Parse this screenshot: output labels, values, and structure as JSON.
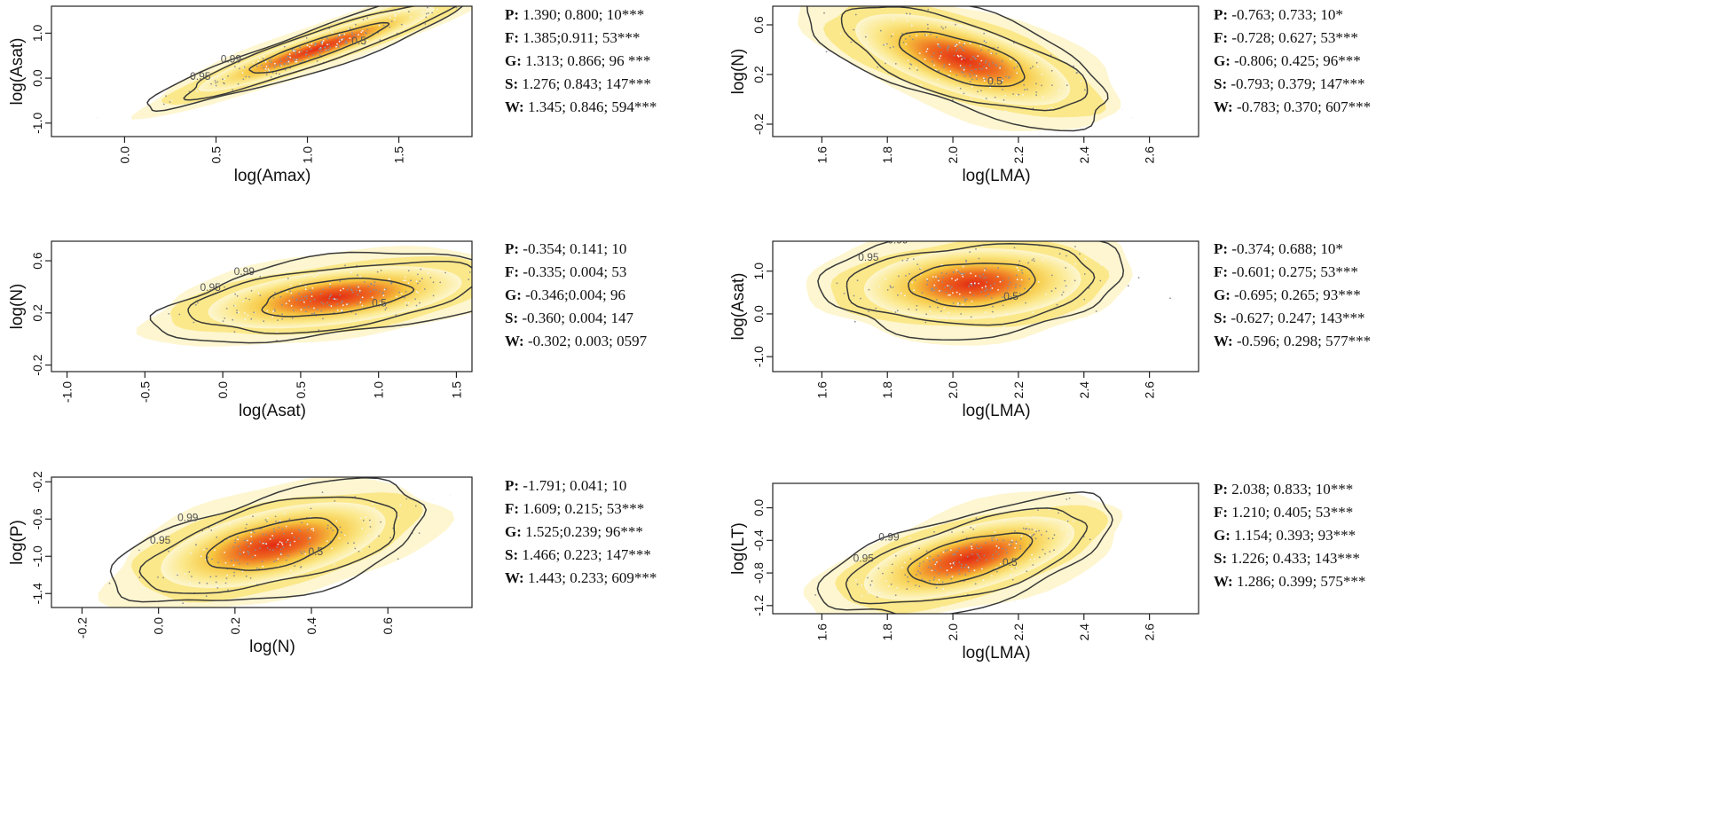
{
  "chart_data": [
    {
      "type": "scatter",
      "title": "",
      "xlabel": "log(Amax)",
      "ylabel": "log(Asat)",
      "xlim": [
        -0.4,
        1.9
      ],
      "ylim": [
        -1.3,
        1.6
      ],
      "xticks": [
        0.0,
        0.5,
        1.0,
        1.5
      ],
      "xtick_labels": [
        "0.0",
        "0.5",
        "1.0",
        "1.5"
      ],
      "yticks": [
        -1.0,
        0.0,
        1.0
      ],
      "ytick_labels": [
        "-1.0",
        "0.0",
        "1.0"
      ],
      "center": [
        1.05,
        0.65
      ],
      "slope": 1.345,
      "contour_levels": [
        "0.99",
        "0.95",
        "0.5"
      ],
      "stats": [
        {
          "key": "P:",
          "text": " 1.390; 0.800; 10***"
        },
        {
          "key": "F:",
          "text": " 1.385;0.911; 53***"
        },
        {
          "key": "G:",
          "text": " 1.313; 0.866; 96 ***"
        },
        {
          "key": "S:",
          "text": " 1.276; 0.843; 147***"
        },
        {
          "key": "W:",
          "text": " 1.345; 0.846; 594***"
        }
      ]
    },
    {
      "type": "scatter",
      "title": "",
      "xlabel": "log(LMA)",
      "ylabel": "log(N)",
      "xlim": [
        1.45,
        2.75
      ],
      "ylim": [
        -0.3,
        0.75
      ],
      "xticks": [
        1.6,
        1.8,
        2.0,
        2.2,
        2.4,
        2.6
      ],
      "xtick_labels": [
        "1.6",
        "1.8",
        "2.0",
        "2.2",
        "2.4",
        "2.6"
      ],
      "yticks": [
        -0.2,
        0.2,
        0.6
      ],
      "ytick_labels": [
        "-0.2",
        "0.2",
        "0.6"
      ],
      "center": [
        2.03,
        0.32
      ],
      "slope": -0.783,
      "contour_levels": [
        "0.99",
        "0.95",
        "0.5"
      ],
      "stats": [
        {
          "key": "P:",
          "text": " -0.763; 0.733; 10*"
        },
        {
          "key": "F:",
          "text": " -0.728; 0.627; 53***"
        },
        {
          "key": "G:",
          "text": " -0.806; 0.425; 96***"
        },
        {
          "key": "S:",
          "text": " -0.793; 0.379; 147***"
        },
        {
          "key": "W:",
          "text": " -0.783; 0.370; 607***"
        }
      ]
    },
    {
      "type": "scatter",
      "title": "",
      "xlabel": "log(Asat)",
      "ylabel": "log(N)",
      "xlim": [
        -1.1,
        1.6
      ],
      "ylim": [
        -0.25,
        0.75
      ],
      "xticks": [
        -1.0,
        -0.5,
        0.0,
        0.5,
        1.0,
        1.5
      ],
      "xtick_labels": [
        "-1.0",
        "-0.5",
        "0.0",
        "0.5",
        "1.0",
        "1.5"
      ],
      "yticks": [
        -0.2,
        0.2,
        0.6
      ],
      "ytick_labels": [
        "-0.2",
        "0.2",
        "0.6"
      ],
      "center": [
        0.72,
        0.32
      ],
      "slope": -0.302,
      "contour_levels": [
        "0.99",
        "0.95",
        "0.5"
      ],
      "stats": [
        {
          "key": "P:",
          "text": " -0.354; 0.141; 10"
        },
        {
          "key": "F:",
          "text": " -0.335; 0.004; 53"
        },
        {
          "key": "G:",
          "text": " -0.346;0.004; 96"
        },
        {
          "key": "S:",
          "text": " -0.360; 0.004; 147"
        },
        {
          "key": "W:",
          "text": " -0.302; 0.003; 0597"
        }
      ]
    },
    {
      "type": "scatter",
      "title": "",
      "xlabel": "log(LMA)",
      "ylabel": "log(Asat)",
      "xlim": [
        1.45,
        2.75
      ],
      "ylim": [
        -1.35,
        1.7
      ],
      "xticks": [
        1.6,
        1.8,
        2.0,
        2.2,
        2.4,
        2.6
      ],
      "xtick_labels": [
        "1.6",
        "1.8",
        "2.0",
        "2.2",
        "2.4",
        "2.6"
      ],
      "yticks": [
        -1.0,
        0.0,
        1.0
      ],
      "ytick_labels": [
        "-1.0",
        "0.0",
        "1.0"
      ],
      "center": [
        2.06,
        0.7
      ],
      "slope": -0.596,
      "contour_levels": [
        "0.99",
        "0.95",
        "0.5"
      ],
      "stats": [
        {
          "key": "P:",
          "text": " -0.374; 0.688; 10*"
        },
        {
          "key": "F:",
          "text": " -0.601; 0.275; 53***"
        },
        {
          "key": "G:",
          "text": " -0.695; 0.265; 93***"
        },
        {
          "key": "S:",
          "text": " -0.627; 0.247; 143***"
        },
        {
          "key": "W:",
          "text": "  -0.596; 0.298; 577***"
        }
      ]
    },
    {
      "type": "scatter",
      "title": "",
      "xlabel": "log(N)",
      "ylabel": "log(P)",
      "xlim": [
        -0.28,
        0.82
      ],
      "ylim": [
        -1.55,
        -0.15
      ],
      "xticks": [
        -0.2,
        0.0,
        0.2,
        0.4,
        0.6
      ],
      "xtick_labels": [
        "-0.2",
        "0.0",
        "0.2",
        "0.4",
        "0.6"
      ],
      "yticks": [
        -1.4,
        -1.0,
        -0.6,
        -0.2
      ],
      "ytick_labels": [
        "-1.4",
        "-1.0",
        "-0.6",
        "-0.2"
      ],
      "center": [
        0.3,
        -0.88
      ],
      "slope": 1.443,
      "contour_levels": [
        "0.99",
        "0.95",
        "0.5"
      ],
      "stats": [
        {
          "key": "P:",
          "text": " -1.791; 0.041; 10"
        },
        {
          "key": "F:",
          "text": "  1.609; 0.215; 53***"
        },
        {
          "key": "G:",
          "text": " 1.525;0.239; 96***"
        },
        {
          "key": "S:",
          "text": "  1.466; 0.223; 147***"
        },
        {
          "key": "W:",
          "text": " 1.443; 0.233; 609***"
        }
      ]
    },
    {
      "type": "scatter",
      "title": "",
      "xlabel": "log(LMA)",
      "ylabel": "log(LT)",
      "xlim": [
        1.45,
        2.75
      ],
      "ylim": [
        -1.3,
        0.3
      ],
      "xticks": [
        1.6,
        1.8,
        2.0,
        2.2,
        2.4,
        2.6
      ],
      "xtick_labels": [
        "1.6",
        "1.8",
        "2.0",
        "2.2",
        "2.4",
        "2.6"
      ],
      "yticks": [
        -1.2,
        -0.8,
        -0.4,
        0.0
      ],
      "ytick_labels": [
        "-1.2",
        "-0.8",
        "-0.4",
        "0.0"
      ],
      "center": [
        2.05,
        -0.62
      ],
      "slope": 1.286,
      "contour_levels": [
        "0.99",
        "0.95",
        "0.5"
      ],
      "stats": [
        {
          "key": "P:",
          "text": " 2.038; 0.833; 10***"
        },
        {
          "key": "F:",
          "text": " 1.210; 0.405; 53***"
        },
        {
          "key": "G:",
          "text": " 1.154; 0.393; 93***"
        },
        {
          "key": "S:",
          "text": " 1.226; 0.433; 143***"
        },
        {
          "key": "W:",
          "text": " 1.286; 0.399; 575***"
        }
      ]
    }
  ],
  "colors": {
    "halo": "#fdf6d0",
    "outer": "#fbe88a",
    "mid": "#f6c640",
    "inner": "#ee6a1f",
    "core": "#e32b14",
    "contour": "#3a3a3a",
    "points": "#8e8e8e"
  }
}
